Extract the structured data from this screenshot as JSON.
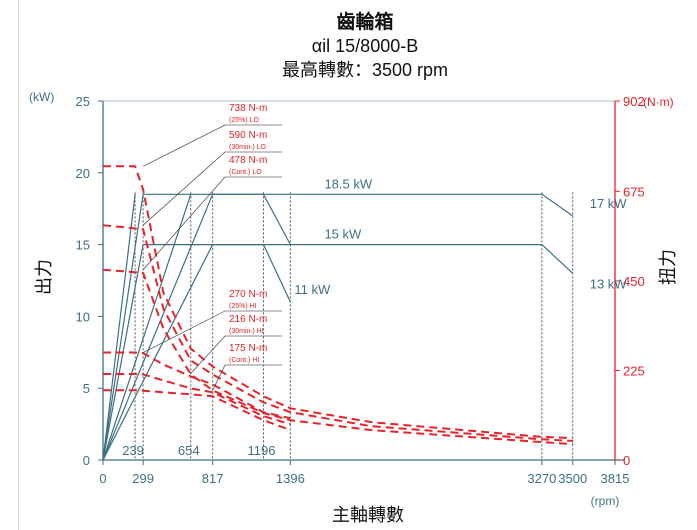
{
  "header": {
    "title": "齒輪箱",
    "model": "αil 15/8000-B",
    "max_speed": "最高轉數：3500 rpm"
  },
  "axes": {
    "left_unit": "(kW)",
    "right_unit": "(N·m)",
    "left_title": "出力",
    "right_title": "扭力",
    "x_title": "主軸轉數",
    "x_unit": "(rpm)"
  },
  "chart_data": {
    "type": "line",
    "title": "齒輪箱",
    "xlabel": "主軸轉數",
    "ylabel": "出力",
    "y2label": "扭力",
    "xlim": [
      0,
      3815
    ],
    "ylim": [
      0,
      25
    ],
    "y2lim": [
      0,
      902
    ],
    "x_ticks": [
      "0",
      "299",
      "817",
      "1396",
      "3270",
      "3500",
      "3815"
    ],
    "x_inner_ticks": [
      "239",
      "654",
      "1196"
    ],
    "y_ticks": [
      "0",
      "5",
      "10",
      "15",
      "20",
      "25"
    ],
    "y2_ticks": [
      "0",
      "225",
      "450",
      "675",
      "902"
    ],
    "power_series": [
      {
        "points": [
          [
            0,
            0
          ],
          [
            299,
            18.5
          ],
          [
            3270,
            18.5
          ],
          [
            3500,
            17
          ]
        ]
      },
      {
        "points": [
          [
            0,
            0
          ],
          [
            817,
            18.5
          ],
          [
            1196,
            18.5
          ],
          [
            1396,
            15
          ]
        ]
      },
      {
        "points": [
          [
            0,
            0
          ],
          [
            654,
            18.5
          ]
        ]
      },
      {
        "points": [
          [
            0,
            0
          ],
          [
            239,
            18.5
          ]
        ]
      },
      {
        "points": [
          [
            0,
            0
          ],
          [
            299,
            15
          ],
          [
            3270,
            15
          ],
          [
            3500,
            13
          ]
        ]
      },
      {
        "points": [
          [
            0,
            0
          ],
          [
            817,
            15
          ],
          [
            1196,
            15
          ],
          [
            1396,
            11
          ]
        ]
      }
    ],
    "power_labels": [
      {
        "text": "18.5 kW",
        "x": 1650,
        "y": 18.5
      },
      {
        "text": "15 kW",
        "x": 1650,
        "y": 15
      },
      {
        "text": "17 kW",
        "x": 3500,
        "y": 17
      },
      {
        "text": "13 kW",
        "x": 3500,
        "y": 13
      },
      {
        "text": "11 kW",
        "x": 1396,
        "y": 11
      }
    ],
    "torque_series": [
      {
        "points": [
          [
            0,
            738
          ],
          [
            239,
            738
          ],
          [
            299,
            680
          ],
          [
            450,
            420
          ],
          [
            654,
            280
          ],
          [
            817,
            235
          ],
          [
            1196,
            160
          ],
          [
            1396,
            130
          ],
          [
            2000,
            95
          ],
          [
            3270,
            58
          ],
          [
            3500,
            55
          ]
        ]
      },
      {
        "points": [
          [
            0,
            590
          ],
          [
            299,
            580
          ],
          [
            450,
            380
          ],
          [
            654,
            250
          ],
          [
            817,
            215
          ],
          [
            1196,
            145
          ],
          [
            1396,
            120
          ],
          [
            2000,
            85
          ],
          [
            3270,
            52
          ],
          [
            3500,
            48
          ]
        ]
      },
      {
        "points": [
          [
            0,
            478
          ],
          [
            299,
            470
          ],
          [
            450,
            330
          ],
          [
            654,
            215
          ],
          [
            817,
            175
          ],
          [
            1196,
            118
          ],
          [
            1396,
            100
          ],
          [
            2000,
            75
          ],
          [
            3270,
            45
          ],
          [
            3500,
            40
          ]
        ]
      },
      {
        "points": [
          [
            0,
            270
          ],
          [
            239,
            270
          ],
          [
            300,
            268
          ],
          [
            450,
            240
          ],
          [
            654,
            210
          ],
          [
            817,
            190
          ],
          [
            1196,
            120
          ],
          [
            1396,
            105
          ]
        ]
      },
      {
        "points": [
          [
            0,
            216
          ],
          [
            239,
            216
          ],
          [
            300,
            215
          ],
          [
            450,
            200
          ],
          [
            654,
            180
          ],
          [
            817,
            170
          ],
          [
            1196,
            110
          ],
          [
            1396,
            90
          ]
        ]
      },
      {
        "points": [
          [
            0,
            175
          ],
          [
            239,
            175
          ],
          [
            300,
            174
          ],
          [
            450,
            170
          ],
          [
            654,
            165
          ],
          [
            817,
            160
          ],
          [
            1196,
            100
          ],
          [
            1396,
            75
          ]
        ]
      }
    ],
    "torque_annotations": [
      {
        "main": "738 N-m",
        "sub": "(25%) LO",
        "anchor": [
          299,
          738
        ]
      },
      {
        "main": "590 N-m",
        "sub": "(30min.) LO",
        "anchor": [
          299,
          590
        ]
      },
      {
        "main": "478 N-m",
        "sub": "(Cont.) LO",
        "anchor": [
          299,
          478
        ]
      },
      {
        "main": "270 N-m",
        "sub": "(25%) HI",
        "anchor": [
          300,
          270
        ]
      },
      {
        "main": "216 N-m",
        "sub": "(30min.) HI",
        "anchor": [
          650,
          216
        ]
      },
      {
        "main": "175 N-m",
        "sub": "(Cont.) HI",
        "anchor": [
          817,
          175
        ]
      }
    ],
    "vertical_guides": [
      239,
      299,
      654,
      817,
      1196,
      1396,
      3270,
      3500
    ],
    "colors": {
      "power": "#3d6f84",
      "torque": "#e4242a"
    }
  }
}
